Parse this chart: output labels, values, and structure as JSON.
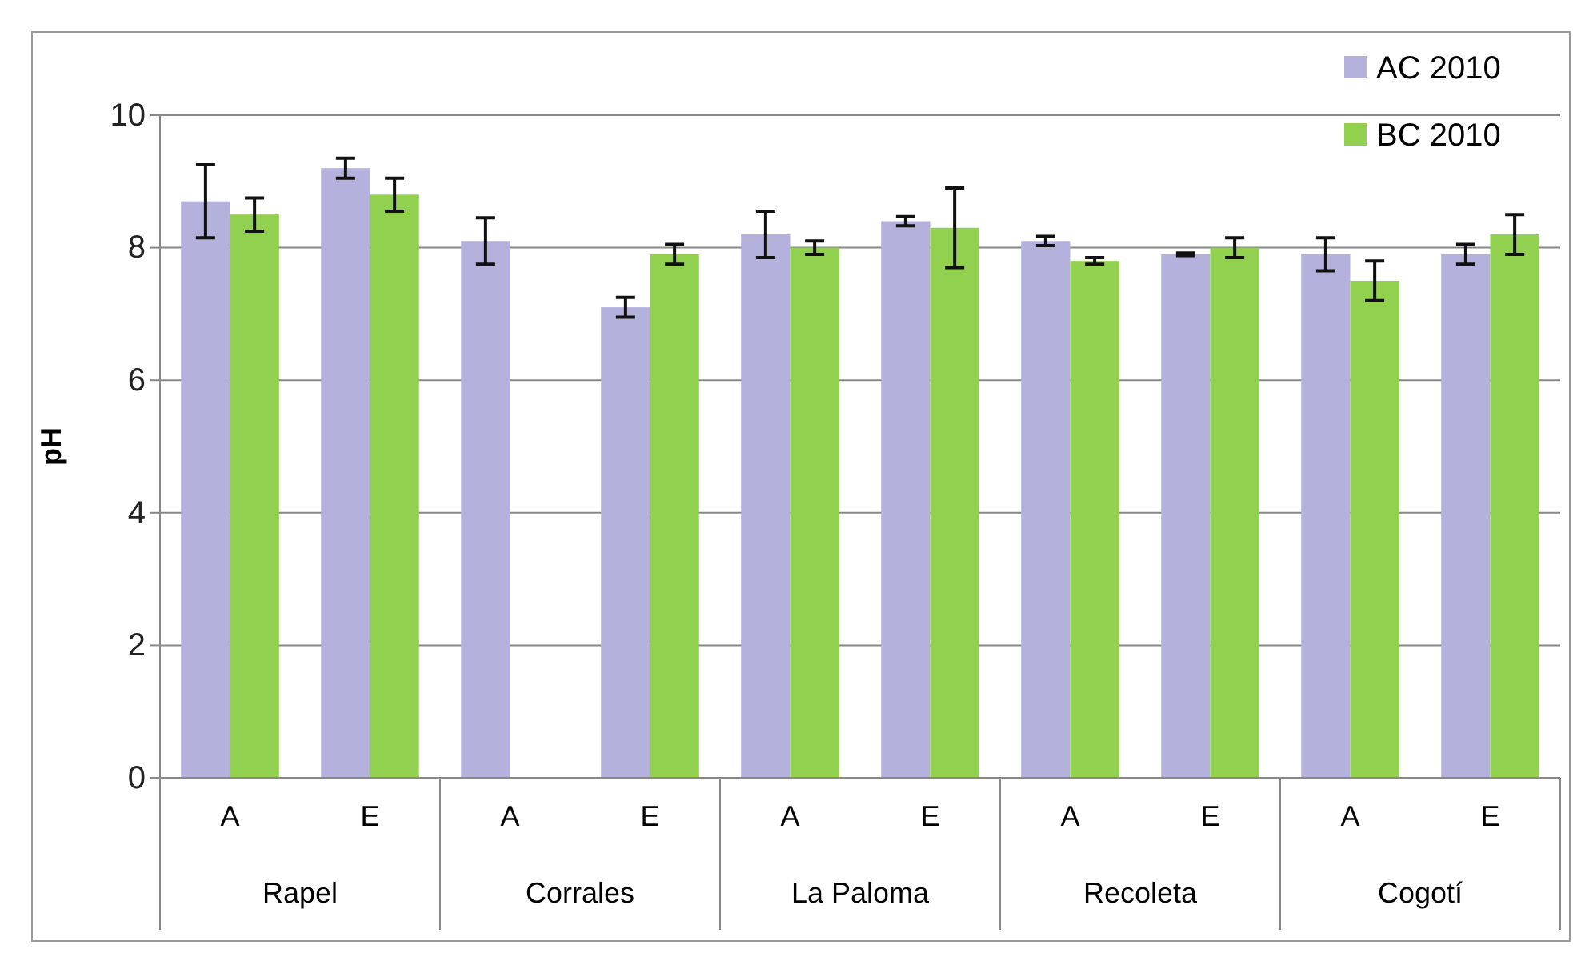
{
  "chart_data": {
    "type": "bar",
    "ylabel": "pH",
    "categories": [
      "A",
      "E",
      "A",
      "E",
      "A",
      "E",
      "A",
      "E",
      "A",
      "E"
    ],
    "annotations": [
      "Rapel",
      "Corrales",
      "La Paloma",
      "Recoleta",
      "Cogotí"
    ],
    "series": [
      {
        "name": "AC 2010",
        "color": "#b4b1dc",
        "values": [
          8.7,
          9.2,
          8.1,
          7.1,
          8.2,
          8.4,
          8.1,
          7.9,
          7.9,
          7.9
        ],
        "errors": [
          0.55,
          0.15,
          0.35,
          0.15,
          0.35,
          0.07,
          0.07,
          0.02,
          0.25,
          0.15
        ]
      },
      {
        "name": "BC 2010",
        "color": "#92d050",
        "values": [
          8.5,
          8.8,
          null,
          7.9,
          8.0,
          8.3,
          7.8,
          8.0,
          7.5,
          8.2
        ],
        "errors": [
          0.25,
          0.25,
          null,
          0.15,
          0.1,
          0.6,
          0.05,
          0.15,
          0.3,
          0.3
        ]
      }
    ],
    "ylim": [
      0,
      10
    ],
    "yticks": [
      0,
      2,
      4,
      6,
      8,
      10
    ],
    "grid": "y",
    "legend": "top right"
  }
}
